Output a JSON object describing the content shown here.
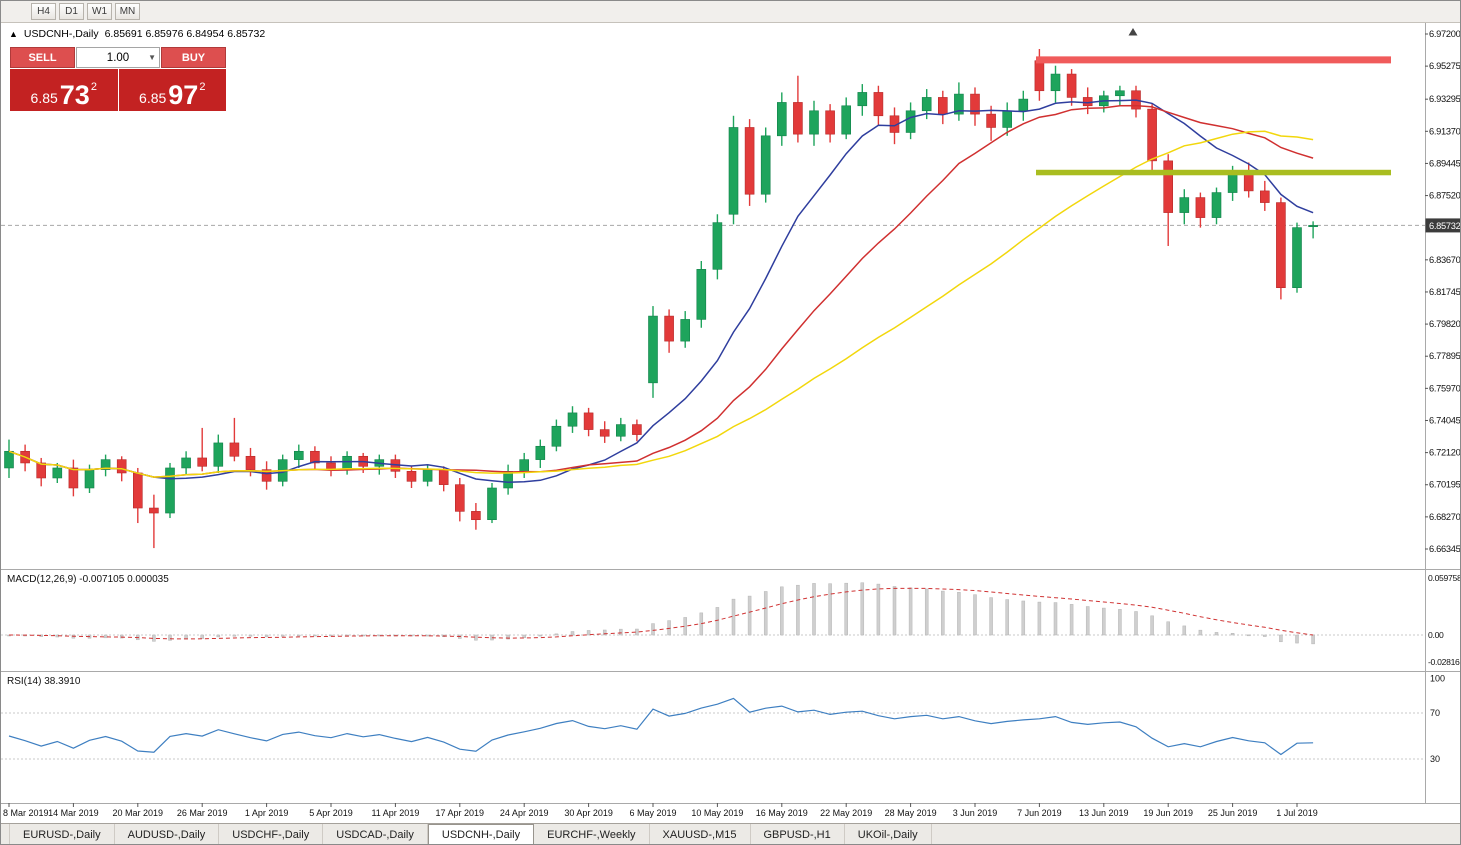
{
  "toolbar": {
    "timeframes": [
      "H4",
      "D1",
      "W1",
      "MN"
    ]
  },
  "trade_panel": {
    "sell_label": "SELL",
    "buy_label": "BUY",
    "volume": "1.00",
    "sell_price": {
      "prefix": "6.85",
      "big": "73",
      "sup": "2"
    },
    "buy_price": {
      "prefix": "6.85",
      "big": "97",
      "sup": "2"
    }
  },
  "chart_data": {
    "type": "candlestick",
    "title": "USDCNH-,Daily",
    "ohlc_display": "6.85691 6.85976 6.84954 6.85732",
    "current_price": 6.85732,
    "current_price_label": "6.85732",
    "price_ticks": [
      "6.97200",
      "6.95275",
      "6.93295",
      "6.91370",
      "6.89445",
      "6.87520",
      "6.83670",
      "6.81745",
      "6.79820",
      "6.77895",
      "6.75970",
      "6.74045",
      "6.72120",
      "6.70195",
      "6.68270",
      "6.66345"
    ],
    "resistance_line": 6.9565,
    "support_line": 6.889,
    "line_colors": {
      "resistance": "#f05b5b",
      "support": "#a9bd20"
    },
    "candle_colors": {
      "up": "#1ea45c",
      "down": "#e23a3a"
    },
    "ma": [
      {
        "period": 10,
        "color": "#2f3e9e"
      },
      {
        "period": 20,
        "color": "#d03030"
      },
      {
        "period": 34,
        "color": "#f2d70c"
      }
    ],
    "macd": {
      "header": "MACD(12,26,9) -0.007105 0.000035",
      "fast": 12,
      "slow": 26,
      "signal": 9,
      "axis": [
        "0.059758",
        "0.00",
        "-0.02816"
      ]
    },
    "rsi": {
      "header": "RSI(14) 38.3910",
      "period": 14,
      "levels": [
        70,
        30
      ],
      "axis": [
        "100",
        "70",
        "30"
      ]
    },
    "date_ticks": [
      {
        "i": 0,
        "label": "8 Mar 2019"
      },
      {
        "i": 4,
        "label": "14 Mar 2019"
      },
      {
        "i": 8,
        "label": "20 Mar 2019"
      },
      {
        "i": 12,
        "label": "26 Mar 2019"
      },
      {
        "i": 16,
        "label": "1 Apr 2019"
      },
      {
        "i": 20,
        "label": "5 Apr 2019"
      },
      {
        "i": 24,
        "label": "11 Apr 2019"
      },
      {
        "i": 28,
        "label": "17 Apr 2019"
      },
      {
        "i": 32,
        "label": "24 Apr 2019"
      },
      {
        "i": 36,
        "label": "30 Apr 2019"
      },
      {
        "i": 40,
        "label": "6 May 2019"
      },
      {
        "i": 44,
        "label": "10 May 2019"
      },
      {
        "i": 48,
        "label": "16 May 2019"
      },
      {
        "i": 52,
        "label": "22 May 2019"
      },
      {
        "i": 56,
        "label": "28 May 2019"
      },
      {
        "i": 60,
        "label": "3 Jun 2019"
      },
      {
        "i": 64,
        "label": "7 Jun 2019"
      },
      {
        "i": 68,
        "label": "13 Jun 2019"
      },
      {
        "i": 72,
        "label": "19 Jun 2019"
      },
      {
        "i": 76,
        "label": "25 Jun 2019"
      },
      {
        "i": 80,
        "label": "1 Jul 2019"
      }
    ],
    "candles": [
      [
        6.712,
        6.729,
        6.706,
        6.722
      ],
      [
        6.722,
        6.726,
        6.71,
        6.715
      ],
      [
        6.715,
        6.718,
        6.701,
        6.706
      ],
      [
        6.706,
        6.715,
        6.703,
        6.712
      ],
      [
        6.712,
        6.717,
        6.695,
        6.7
      ],
      [
        6.7,
        6.714,
        6.697,
        6.711
      ],
      [
        6.711,
        6.72,
        6.707,
        6.717
      ],
      [
        6.717,
        6.719,
        6.704,
        6.709
      ],
      [
        6.709,
        6.712,
        6.679,
        6.688
      ],
      [
        6.688,
        6.696,
        6.664,
        6.685
      ],
      [
        6.685,
        6.715,
        6.682,
        6.712
      ],
      [
        6.712,
        6.722,
        6.708,
        6.718
      ],
      [
        6.718,
        6.736,
        6.71,
        6.713
      ],
      [
        6.713,
        6.732,
        6.709,
        6.727
      ],
      [
        6.727,
        6.742,
        6.716,
        6.719
      ],
      [
        6.719,
        6.724,
        6.707,
        6.711
      ],
      [
        6.711,
        6.716,
        6.699,
        6.704
      ],
      [
        6.704,
        6.72,
        6.701,
        6.717
      ],
      [
        6.717,
        6.726,
        6.712,
        6.722
      ],
      [
        6.722,
        6.725,
        6.711,
        6.715
      ],
      [
        6.715,
        6.719,
        6.707,
        6.711
      ],
      [
        6.711,
        6.722,
        6.708,
        6.719
      ],
      [
        6.719,
        6.721,
        6.709,
        6.713
      ],
      [
        6.713,
        6.72,
        6.708,
        6.717
      ],
      [
        6.717,
        6.72,
        6.706,
        6.71
      ],
      [
        6.71,
        6.713,
        6.7,
        6.704
      ],
      [
        6.704,
        6.714,
        6.701,
        6.711
      ],
      [
        6.711,
        6.713,
        6.698,
        6.702
      ],
      [
        6.702,
        6.706,
        6.68,
        6.686
      ],
      [
        6.686,
        6.691,
        6.675,
        6.681
      ],
      [
        6.681,
        6.703,
        6.679,
        6.7
      ],
      [
        6.7,
        6.714,
        6.696,
        6.71
      ],
      [
        6.71,
        6.721,
        6.706,
        6.717
      ],
      [
        6.717,
        6.729,
        6.712,
        6.725
      ],
      [
        6.725,
        6.741,
        6.722,
        6.737
      ],
      [
        6.737,
        6.749,
        6.733,
        6.745
      ],
      [
        6.745,
        6.748,
        6.731,
        6.735
      ],
      [
        6.735,
        6.74,
        6.727,
        6.731
      ],
      [
        6.731,
        6.742,
        6.728,
        6.738
      ],
      [
        6.738,
        6.741,
        6.728,
        6.732
      ],
      [
        6.763,
        6.809,
        6.754,
        6.803
      ],
      [
        6.803,
        6.807,
        6.781,
        6.788
      ],
      [
        6.788,
        6.806,
        6.784,
        6.801
      ],
      [
        6.801,
        6.836,
        6.796,
        6.831
      ],
      [
        6.831,
        6.864,
        6.825,
        6.859
      ],
      [
        6.864,
        6.923,
        6.858,
        6.916
      ],
      [
        6.916,
        6.921,
        6.869,
        6.876
      ],
      [
        6.876,
        6.916,
        6.871,
        6.911
      ],
      [
        6.911,
        6.937,
        6.905,
        6.931
      ],
      [
        6.931,
        6.947,
        6.907,
        6.912
      ],
      [
        6.912,
        6.932,
        6.905,
        6.926
      ],
      [
        6.926,
        6.93,
        6.907,
        6.912
      ],
      [
        6.912,
        6.934,
        6.909,
        6.929
      ],
      [
        6.929,
        6.942,
        6.923,
        6.937
      ],
      [
        6.937,
        6.941,
        6.917,
        6.923
      ],
      [
        6.923,
        6.928,
        6.906,
        6.913
      ],
      [
        6.913,
        6.931,
        6.909,
        6.926
      ],
      [
        6.926,
        6.939,
        6.921,
        6.934
      ],
      [
        6.934,
        6.938,
        6.918,
        6.924
      ],
      [
        6.924,
        6.943,
        6.92,
        6.936
      ],
      [
        6.936,
        6.94,
        6.917,
        6.924
      ],
      [
        6.924,
        6.929,
        6.908,
        6.916
      ],
      [
        6.916,
        6.931,
        6.911,
        6.926
      ],
      [
        6.926,
        6.938,
        6.92,
        6.933
      ],
      [
        6.956,
        6.963,
        6.932,
        6.938
      ],
      [
        6.938,
        6.953,
        6.931,
        6.948
      ],
      [
        6.948,
        6.951,
        6.929,
        6.934
      ],
      [
        6.934,
        6.94,
        6.924,
        6.929
      ],
      [
        6.929,
        6.938,
        6.925,
        6.935
      ],
      [
        6.935,
        6.941,
        6.929,
        6.938
      ],
      [
        6.938,
        6.941,
        6.922,
        6.927
      ],
      [
        6.927,
        6.93,
        6.889,
        6.896
      ],
      [
        6.896,
        6.9,
        6.845,
        6.865
      ],
      [
        6.865,
        6.879,
        6.858,
        6.874
      ],
      [
        6.874,
        6.877,
        6.856,
        6.862
      ],
      [
        6.862,
        6.88,
        6.858,
        6.877
      ],
      [
        6.877,
        6.893,
        6.872,
        6.889
      ],
      [
        6.889,
        6.895,
        6.874,
        6.878
      ],
      [
        6.878,
        6.884,
        6.866,
        6.871
      ],
      [
        6.871,
        6.874,
        6.813,
        6.82
      ],
      [
        6.82,
        6.859,
        6.817,
        6.856
      ],
      [
        6.85691,
        6.85976,
        6.84954,
        6.85732
      ]
    ]
  },
  "tabs": [
    {
      "label": "EURUSD-,Daily",
      "active": false
    },
    {
      "label": "AUDUSD-,Daily",
      "active": false
    },
    {
      "label": "USDCHF-,Daily",
      "active": false
    },
    {
      "label": "USDCAD-,Daily",
      "active": false
    },
    {
      "label": "USDCNH-,Daily",
      "active": true
    },
    {
      "label": "EURCHF-,Weekly",
      "active": false
    },
    {
      "label": "XAUUSD-,M15",
      "active": false
    },
    {
      "label": "GBPUSD-,H1",
      "active": false
    },
    {
      "label": "UKOil-,Daily",
      "active": false
    }
  ]
}
